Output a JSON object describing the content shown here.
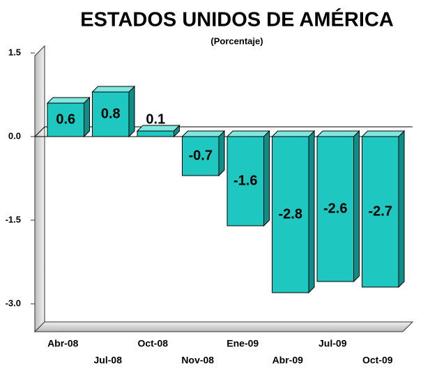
{
  "chart_data": {
    "type": "bar3d",
    "title": "ESTADOS UNIDOS DE AMÉRICA",
    "subtitle": "(Porcentaje)",
    "categories": [
      "Abr-08",
      "Jul-08",
      "Oct-08",
      "Nov-08",
      "Ene-09",
      "Abr-09",
      "Jul-09",
      "Oct-09"
    ],
    "values": [
      0.6,
      0.8,
      0.1,
      -0.7,
      -1.6,
      -2.8,
      -2.6,
      -2.7
    ],
    "color": "#1ec8c0",
    "ylim": [
      -3.5,
      1.5
    ],
    "yticks": [
      1.5,
      {
        "value": 0,
        "label": "0.0"
      },
      -1.5,
      {
        "value": -3,
        "label": "-3.0"
      }
    ]
  }
}
